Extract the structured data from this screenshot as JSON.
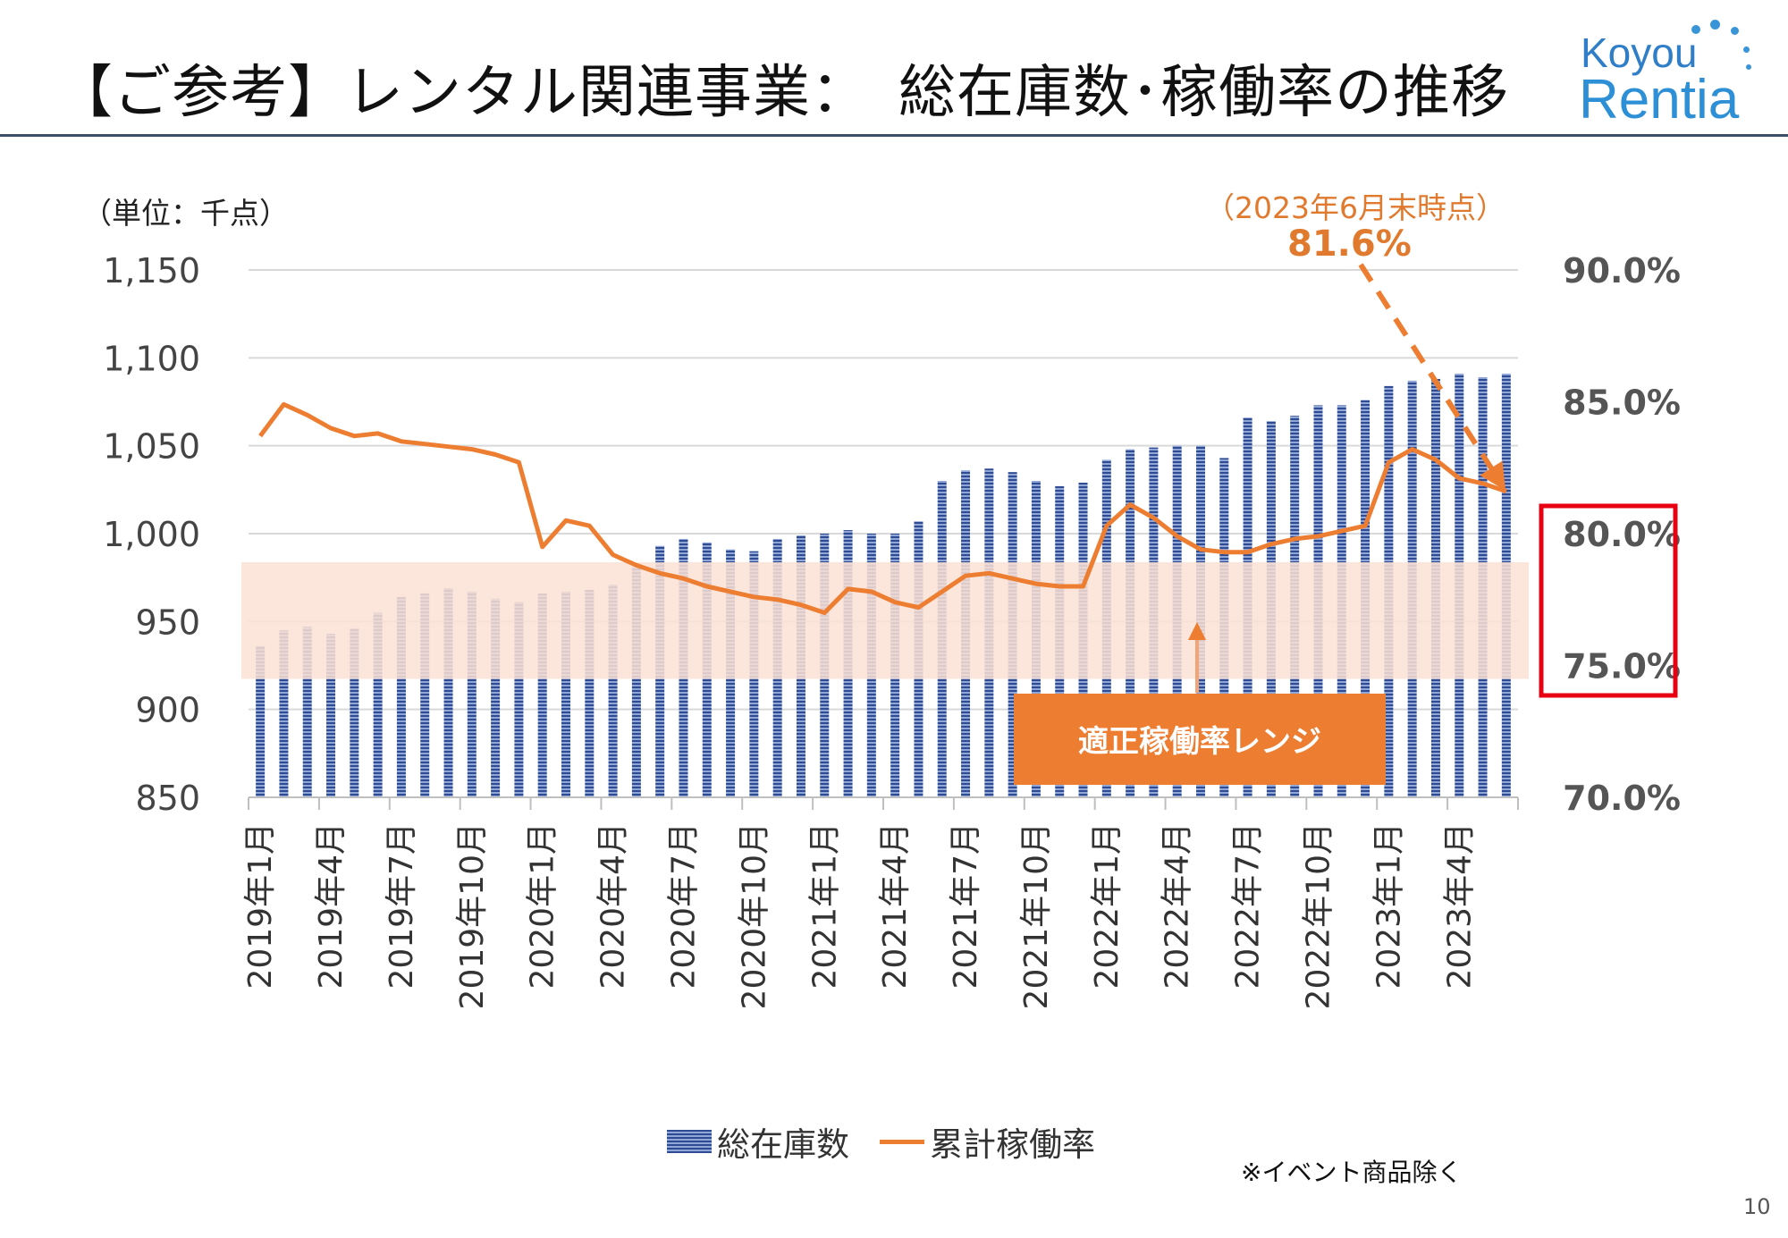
{
  "header": {
    "title": "【ご参考】レンタル関連事業：　総在庫数･稼働率の推移",
    "logo_line1": "Koyou",
    "logo_line2": "Rentia"
  },
  "unit_label": "（単位：千点）",
  "callout": {
    "date_text": "（2023年6月末時点）",
    "value_text": "81.6%"
  },
  "band_label": "適正稼働率レンジ",
  "note": "※イベント商品除く",
  "page_number": "10",
  "legend": {
    "bar_label": "総在庫数",
    "line_label": "累計稼働率"
  },
  "colors": {
    "bar": "#2e4b94",
    "line": "#ed7d31",
    "band": "#fbe1d3",
    "band_label_bg": "#ed7d31",
    "highlight_box": "#e60012"
  },
  "chart_data": {
    "type": "bar",
    "categories": [
      "2019年1月",
      "2019年2月",
      "2019年3月",
      "2019年4月",
      "2019年5月",
      "2019年6月",
      "2019年7月",
      "2019年8月",
      "2019年9月",
      "2019年10月",
      "2019年11月",
      "2019年12月",
      "2020年1月",
      "2020年2月",
      "2020年3月",
      "2020年4月",
      "2020年5月",
      "2020年6月",
      "2020年7月",
      "2020年8月",
      "2020年9月",
      "2020年10月",
      "2020年11月",
      "2020年12月",
      "2021年1月",
      "2021年2月",
      "2021年3月",
      "2021年4月",
      "2021年5月",
      "2021年6月",
      "2021年7月",
      "2021年8月",
      "2021年9月",
      "2021年10月",
      "2021年11月",
      "2021年12月",
      "2022年1月",
      "2022年2月",
      "2022年3月",
      "2022年4月",
      "2022年5月",
      "2022年6月",
      "2022年7月",
      "2022年8月",
      "2022年9月",
      "2022年10月",
      "2022年11月",
      "2022年12月",
      "2023年1月",
      "2023年2月",
      "2023年3月",
      "2023年4月",
      "2023年5月",
      "2023年6月"
    ],
    "tick_labels": [
      "2019年1月",
      "2019年4月",
      "2019年7月",
      "2019年10月",
      "2020年1月",
      "2020年4月",
      "2020年7月",
      "2020年10月",
      "2021年1月",
      "2021年4月",
      "2021年7月",
      "2021年10月",
      "2022年1月",
      "2022年4月",
      "2022年7月",
      "2022年10月",
      "2023年1月",
      "2023年4月"
    ],
    "series": [
      {
        "name": "総在庫数",
        "axis": "left",
        "type": "bar",
        "values": [
          936,
          945,
          947,
          943,
          946,
          955,
          964,
          966,
          969,
          967,
          963,
          961,
          966,
          967,
          968,
          971,
          981,
          993,
          997,
          995,
          991,
          990,
          997,
          999,
          1000,
          1002,
          1000,
          1000,
          1007,
          1030,
          1036,
          1037,
          1035,
          1030,
          1027,
          1029,
          1042,
          1048,
          1049,
          1050,
          1050,
          1043,
          1066,
          1064,
          1067,
          1073,
          1073,
          1076,
          1084,
          1087,
          1088,
          1091,
          1089,
          1091
        ]
      },
      {
        "name": "累計稼働率",
        "axis": "right",
        "type": "line",
        "values": [
          83.7,
          84.9,
          84.5,
          84.0,
          83.7,
          83.8,
          83.5,
          83.4,
          83.3,
          83.2,
          83.0,
          82.7,
          79.5,
          80.5,
          80.3,
          79.2,
          78.8,
          78.5,
          78.3,
          78.0,
          77.8,
          77.6,
          77.5,
          77.3,
          77.0,
          77.9,
          77.8,
          77.4,
          77.2,
          77.8,
          78.4,
          78.5,
          78.3,
          78.1,
          78.0,
          78.0,
          80.3,
          81.1,
          80.6,
          79.9,
          79.4,
          79.3,
          79.3,
          79.6,
          79.8,
          79.9,
          80.1,
          80.3,
          82.7,
          83.2,
          82.8,
          82.1,
          81.9,
          81.6
        ]
      }
    ],
    "left_axis": {
      "ylim": [
        850,
        1150
      ],
      "ticks": [
        "850",
        "900",
        "950",
        "1,000",
        "1,050",
        "1,100",
        "1,150"
      ]
    },
    "right_axis": {
      "ylim": [
        70.0,
        90.0
      ],
      "ticks": [
        "70.0%",
        "75.0%",
        "80.0%",
        "85.0%",
        "90.0%"
      ]
    },
    "target_range": [
      75.0,
      80.0
    ],
    "grid": true,
    "legend_position": "bottom"
  }
}
